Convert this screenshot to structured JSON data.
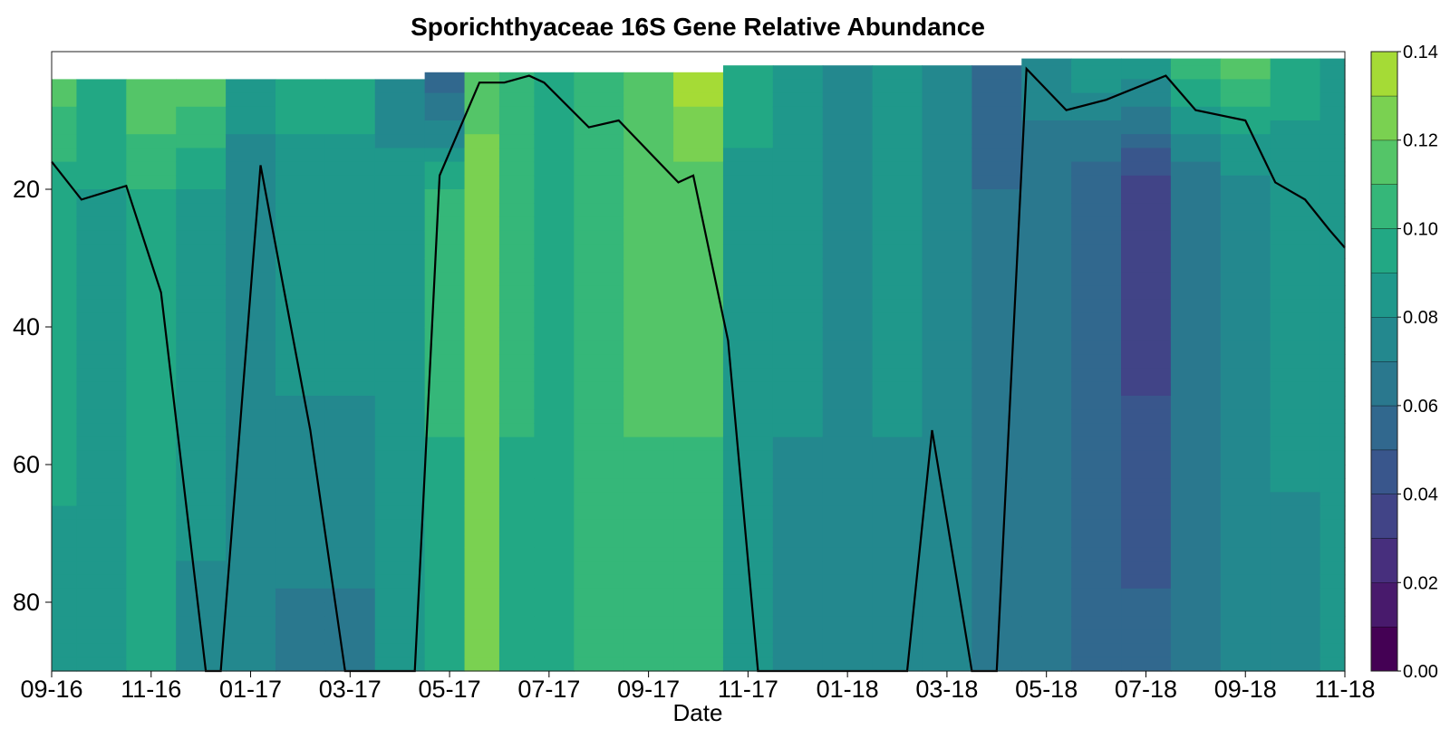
{
  "chart_data": {
    "type": "heatmap",
    "title": "Sporichthyaceae 16S Gene Relative Abundance",
    "xlabel": "Date",
    "ylabel": "",
    "x_tick_labels": [
      "09-16",
      "11-16",
      "01-17",
      "03-17",
      "05-17",
      "07-17",
      "09-17",
      "11-17",
      "01-18",
      "03-18",
      "05-18",
      "07-18",
      "09-18",
      "11-18"
    ],
    "y_ticks": [
      20,
      40,
      60,
      80
    ],
    "y_range": [
      0,
      90
    ],
    "y_reversed": true,
    "colorbar": {
      "ticks": [
        0.0,
        0.02,
        0.04,
        0.06,
        0.08,
        0.1,
        0.12,
        0.14
      ],
      "tick_labels": [
        "0.00",
        "0.02",
        "0.04",
        "0.06",
        "0.08",
        "0.10",
        "0.12",
        "0.14"
      ],
      "levels": [
        0.0,
        0.01,
        0.02,
        0.03,
        0.04,
        0.05,
        0.06,
        0.07,
        0.08,
        0.09,
        0.1,
        0.11,
        0.12,
        0.13,
        0.14
      ],
      "colormap": [
        "#440154",
        "#481a6c",
        "#472f7d",
        "#414487",
        "#39568c",
        "#31688e",
        "#2a788e",
        "#23888e",
        "#1f988b",
        "#22a884",
        "#35b779",
        "#54c568",
        "#7ad151",
        "#a5db36",
        "#d2e21b",
        "#fde725"
      ]
    },
    "surface_columns": [
      {
        "x": 0.0,
        "top": 4.0,
        "near": 0.115,
        "mid": 0.095,
        "deep": 0.085
      },
      {
        "x": 0.5,
        "top": 4.0,
        "near": 0.1,
        "mid": 0.09,
        "deep": 0.085
      },
      {
        "x": 1.0,
        "top": 4.0,
        "near": 0.12,
        "mid": 0.1,
        "deep": 0.09
      },
      {
        "x": 1.5,
        "top": 4.0,
        "near": 0.115,
        "mid": 0.09,
        "deep": 0.075
      },
      {
        "x": 2.0,
        "top": 4.0,
        "near": 0.085,
        "mid": 0.075,
        "deep": 0.075
      },
      {
        "x": 2.5,
        "top": 4.0,
        "near": 0.095,
        "mid": 0.085,
        "deep": 0.065
      },
      {
        "x": 3.0,
        "top": 4.0,
        "near": 0.095,
        "mid": 0.085,
        "deep": 0.065
      },
      {
        "x": 3.5,
        "top": 4.0,
        "near": 0.07,
        "mid": 0.085,
        "deep": 0.085
      },
      {
        "x": 4.0,
        "top": 3.0,
        "near": 0.05,
        "mid": 0.1,
        "deep": 0.1
      },
      {
        "x": 4.3,
        "top": 3.0,
        "near": 0.115,
        "mid": 0.125,
        "deep": 0.13
      },
      {
        "x": 4.7,
        "top": 3.0,
        "near": 0.11,
        "mid": 0.1,
        "deep": 0.1
      },
      {
        "x": 5.0,
        "top": 3.0,
        "near": 0.1,
        "mid": 0.095,
        "deep": 0.09
      },
      {
        "x": 5.5,
        "top": 3.0,
        "near": 0.1,
        "mid": 0.105,
        "deep": 0.105
      },
      {
        "x": 6.0,
        "top": 3.0,
        "near": 0.11,
        "mid": 0.115,
        "deep": 0.1
      },
      {
        "x": 6.5,
        "top": 3.0,
        "near": 0.135,
        "mid": 0.115,
        "deep": 0.1
      },
      {
        "x": 7.0,
        "top": 2.0,
        "near": 0.1,
        "mid": 0.085,
        "deep": 0.08
      },
      {
        "x": 7.5,
        "top": 2.0,
        "near": 0.085,
        "mid": 0.08,
        "deep": 0.08
      },
      {
        "x": 8.0,
        "top": 2.0,
        "near": 0.08,
        "mid": 0.075,
        "deep": 0.075
      },
      {
        "x": 8.5,
        "top": 2.0,
        "near": 0.08,
        "mid": 0.08,
        "deep": 0.08
      },
      {
        "x": 9.0,
        "top": 2.0,
        "near": 0.075,
        "mid": 0.075,
        "deep": 0.07
      },
      {
        "x": 9.5,
        "top": 2.0,
        "near": 0.05,
        "mid": 0.06,
        "deep": 0.06
      },
      {
        "x": 10.0,
        "top": 1.0,
        "near": 0.075,
        "mid": 0.065,
        "deep": 0.065
      },
      {
        "x": 10.5,
        "top": 1.0,
        "near": 0.09,
        "mid": 0.05,
        "deep": 0.055
      },
      {
        "x": 11.0,
        "top": 1.0,
        "near": 0.09,
        "mid": 0.035,
        "deep": 0.055
      },
      {
        "x": 11.5,
        "top": 1.0,
        "near": 0.105,
        "mid": 0.06,
        "deep": 0.06
      },
      {
        "x": 12.0,
        "top": 1.0,
        "near": 0.115,
        "mid": 0.075,
        "deep": 0.07
      },
      {
        "x": 12.5,
        "top": 1.0,
        "near": 0.095,
        "mid": 0.085,
        "deep": 0.075
      },
      {
        "x": 13.0,
        "top": 1.0,
        "near": 0.085,
        "mid": 0.085,
        "deep": 0.085
      }
    ],
    "boundary_line": {
      "x": [
        0.0,
        0.3,
        0.75,
        1.1,
        1.55,
        1.7,
        2.1,
        2.6,
        2.95,
        3.65,
        3.9,
        4.3,
        4.55,
        4.8,
        4.95,
        5.4,
        5.7,
        6.3,
        6.45,
        6.8,
        7.1,
        7.4,
        8.6,
        8.85,
        9.25,
        9.5,
        9.8,
        10.2,
        10.6,
        11.2,
        11.5,
        12.0,
        12.3,
        12.6,
        12.85,
        13.0
      ],
      "y": [
        16,
        21.5,
        19.5,
        35,
        90,
        90,
        16.5,
        55,
        90,
        90,
        18,
        4.5,
        4.5,
        3.5,
        4.5,
        11,
        10,
        19,
        18,
        42,
        90,
        90,
        90,
        55,
        90,
        90,
        2.5,
        8.5,
        7,
        3.5,
        8.5,
        10,
        19,
        21.5,
        26,
        28.5
      ]
    }
  }
}
